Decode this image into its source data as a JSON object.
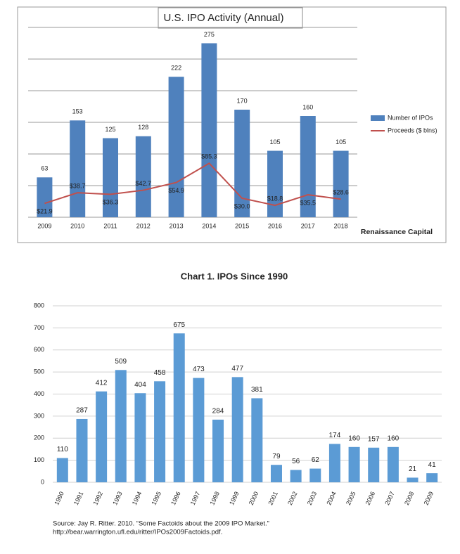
{
  "chart_data": [
    {
      "type": "bar",
      "title": "U.S. IPO Activity (Annual)",
      "categories": [
        "2009",
        "2010",
        "2011",
        "2012",
        "2013",
        "2014",
        "2015",
        "2016",
        "2017",
        "2018"
      ],
      "series": [
        {
          "name": "Number of IPOs",
          "type": "bar",
          "color": "#4f81bd",
          "values": [
            63,
            153,
            125,
            128,
            222,
            275,
            170,
            105,
            160,
            105
          ]
        },
        {
          "name": "Proceeds ($ blns)",
          "type": "line",
          "color": "#c0504d",
          "values": [
            21.9,
            38.7,
            36.3,
            42.7,
            54.9,
            85.3,
            30.0,
            18.8,
            35.5,
            28.6
          ],
          "value_labels": [
            "$21.9",
            "$38.7",
            "$36.3",
            "$42.7",
            "$54.9",
            "$85.3",
            "$30.0",
            "$18.8",
            "$35.5",
            "$28.6"
          ]
        }
      ],
      "ylim": [
        0,
        300
      ],
      "yticks": [
        0,
        50,
        100,
        150,
        200,
        250,
        300
      ],
      "show_tick_labels": false,
      "grid": true,
      "legend": "right",
      "source": "Renaissance Capital"
    },
    {
      "type": "bar",
      "title": "Chart 1. IPOs Since 1990",
      "categories": [
        "1990",
        "1991",
        "1992",
        "1993",
        "1994",
        "1995",
        "1996",
        "1997",
        "1998",
        "1999",
        "2000",
        "2001",
        "2002",
        "2003",
        "2004",
        "2005",
        "2006",
        "2007",
        "2008",
        "2009"
      ],
      "series": [
        {
          "name": null,
          "type": "bar",
          "color": "#5b9bd5",
          "values": [
            110,
            287,
            412,
            509,
            404,
            458,
            675,
            473,
            284,
            477,
            381,
            79,
            56,
            62,
            174,
            160,
            157,
            160,
            21,
            41
          ]
        }
      ],
      "ylim": [
        0,
        800
      ],
      "yticks": [
        0,
        100,
        200,
        300,
        400,
        500,
        600,
        700,
        800
      ],
      "show_tick_labels": true,
      "grid": true,
      "source": [
        "Source: Jay R. Ritter. 2010. “Some Factoids about the 2009 IPO Market.”",
        "http://bear.warrington.ufl.edu/ritter/IPOs2009Factoids.pdf."
      ]
    }
  ]
}
